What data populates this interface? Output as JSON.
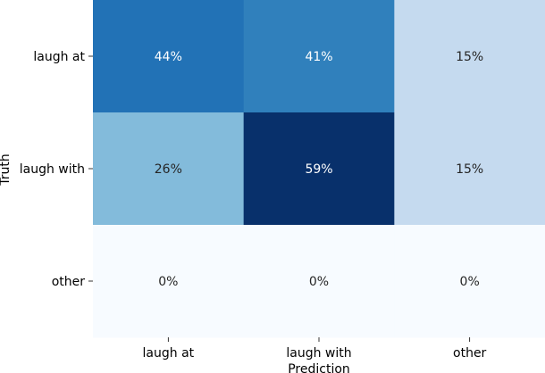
{
  "chart_data": {
    "type": "heatmap",
    "title": "",
    "xlabel": "Prediction",
    "ylabel": "Truth",
    "x_categories": [
      "laugh at",
      "laugh with",
      "other"
    ],
    "y_categories": [
      "laugh at",
      "laugh with",
      "other"
    ],
    "values": [
      [
        44,
        41,
        15
      ],
      [
        26,
        59,
        15
      ],
      [
        0,
        0,
        0
      ]
    ],
    "value_format": "percent",
    "colormap": "Blues",
    "vmin": 0,
    "vmax": 59,
    "grid": false,
    "colorbar": false,
    "colors": {
      "low": "#f7fbff",
      "high": "#08306b",
      "text_light": "#ffffff",
      "text_dark": "#262626"
    }
  }
}
